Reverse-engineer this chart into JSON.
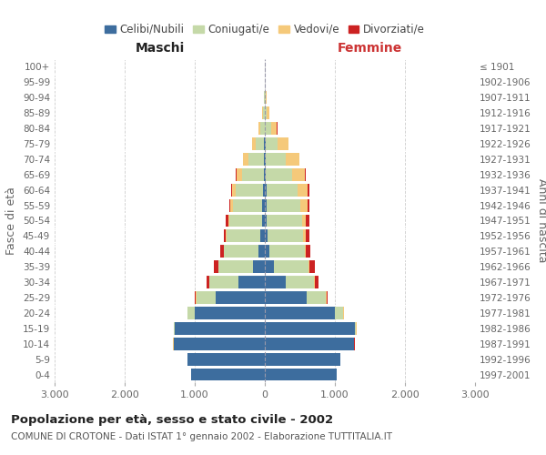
{
  "age_groups": [
    "0-4",
    "5-9",
    "10-14",
    "15-19",
    "20-24",
    "25-29",
    "30-34",
    "35-39",
    "40-44",
    "45-49",
    "50-54",
    "55-59",
    "60-64",
    "65-69",
    "70-74",
    "75-79",
    "80-84",
    "85-89",
    "90-94",
    "95-99",
    "100+"
  ],
  "birth_years": [
    "1997-2001",
    "1992-1996",
    "1987-1991",
    "1982-1986",
    "1977-1981",
    "1972-1976",
    "1967-1971",
    "1962-1966",
    "1957-1961",
    "1952-1956",
    "1947-1951",
    "1942-1946",
    "1937-1941",
    "1932-1936",
    "1927-1931",
    "1922-1926",
    "1917-1921",
    "1912-1916",
    "1907-1911",
    "1902-1906",
    "≤ 1901"
  ],
  "male_celibe": [
    1050,
    1100,
    1300,
    1280,
    1000,
    700,
    380,
    170,
    90,
    60,
    45,
    35,
    25,
    18,
    12,
    8,
    4,
    3,
    2,
    0,
    0
  ],
  "male_coniugato": [
    2,
    2,
    5,
    20,
    100,
    280,
    410,
    490,
    490,
    480,
    460,
    420,
    385,
    310,
    225,
    120,
    55,
    20,
    8,
    2,
    0
  ],
  "male_vedovo": [
    0,
    0,
    1,
    2,
    3,
    5,
    5,
    8,
    10,
    15,
    20,
    35,
    55,
    75,
    75,
    55,
    30,
    15,
    5,
    1,
    0
  ],
  "male_divorziato": [
    0,
    0,
    1,
    2,
    5,
    15,
    40,
    55,
    50,
    35,
    30,
    20,
    15,
    8,
    5,
    2,
    0,
    0,
    0,
    0,
    0
  ],
  "female_celibe": [
    1020,
    1080,
    1270,
    1280,
    1000,
    600,
    300,
    130,
    60,
    40,
    30,
    25,
    20,
    15,
    10,
    8,
    5,
    3,
    2,
    0,
    0
  ],
  "female_coniugato": [
    2,
    3,
    8,
    25,
    120,
    270,
    400,
    490,
    510,
    510,
    500,
    480,
    450,
    380,
    290,
    180,
    80,
    25,
    10,
    2,
    0
  ],
  "female_vedovo": [
    0,
    0,
    1,
    2,
    5,
    8,
    10,
    15,
    20,
    30,
    55,
    100,
    140,
    180,
    190,
    150,
    90,
    40,
    15,
    2,
    0
  ],
  "female_divorziato": [
    0,
    0,
    1,
    3,
    8,
    20,
    55,
    80,
    65,
    55,
    45,
    30,
    20,
    12,
    8,
    3,
    2,
    0,
    0,
    0,
    0
  ],
  "colors": {
    "celibe": "#3d6d9e",
    "coniugato": "#c5d9a8",
    "vedovo": "#f5c97a",
    "divorziato": "#cc2222"
  },
  "title": "Popolazione per età, sesso e stato civile - 2002",
  "subtitle": "COMUNE DI CROTONE - Dati ISTAT 1° gennaio 2002 - Elaborazione TUTTITALIA.IT",
  "xlabel_left": "Maschi",
  "xlabel_right": "Femmine",
  "ylabel_left": "Fasce di età",
  "ylabel_right": "Anni di nascita",
  "xlim": 3000,
  "bg_color": "#ffffff",
  "grid_color": "#cccccc"
}
